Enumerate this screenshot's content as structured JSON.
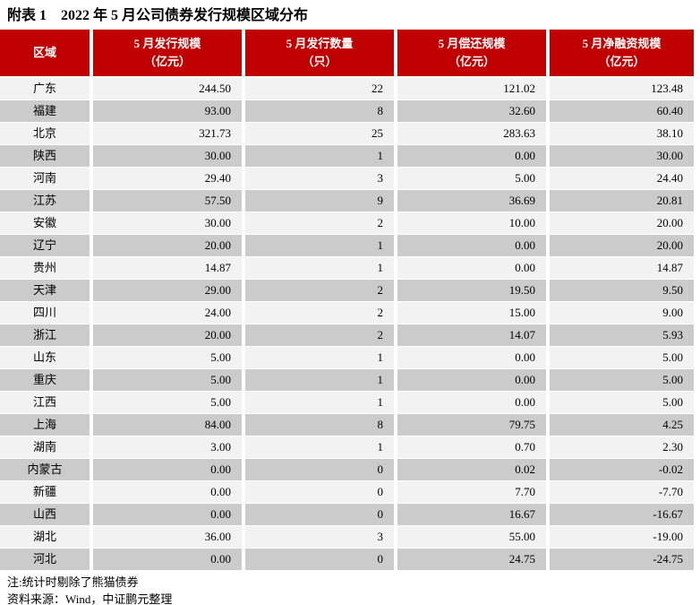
{
  "title": "附表 1　2022 年 5 月公司债券发行规模区域分布",
  "colors": {
    "header_bg": "#C00000",
    "header_text": "#FFFFFF",
    "row_light": "#F2F2F2",
    "row_dark": "#CBCBCB"
  },
  "table": {
    "columns": [
      {
        "line1": "区域",
        "line2": ""
      },
      {
        "line1": "5 月发行规模",
        "line2": "（亿元）"
      },
      {
        "line1": "5 月发行数量",
        "line2": "（只）"
      },
      {
        "line1": "5 月偿还规模",
        "line2": "（亿元）"
      },
      {
        "line1": "5 月净融资规模",
        "line2": "（亿元）"
      }
    ],
    "rows": [
      [
        "广东",
        "244.50",
        "22",
        "121.02",
        "123.48"
      ],
      [
        "福建",
        "93.00",
        "8",
        "32.60",
        "60.40"
      ],
      [
        "北京",
        "321.73",
        "25",
        "283.63",
        "38.10"
      ],
      [
        "陕西",
        "30.00",
        "1",
        "0.00",
        "30.00"
      ],
      [
        "河南",
        "29.40",
        "3",
        "5.00",
        "24.40"
      ],
      [
        "江苏",
        "57.50",
        "9",
        "36.69",
        "20.81"
      ],
      [
        "安徽",
        "30.00",
        "2",
        "10.00",
        "20.00"
      ],
      [
        "辽宁",
        "20.00",
        "1",
        "0.00",
        "20.00"
      ],
      [
        "贵州",
        "14.87",
        "1",
        "0.00",
        "14.87"
      ],
      [
        "天津",
        "29.00",
        "2",
        "19.50",
        "9.50"
      ],
      [
        "四川",
        "24.00",
        "2",
        "15.00",
        "9.00"
      ],
      [
        "浙江",
        "20.00",
        "2",
        "14.07",
        "5.93"
      ],
      [
        "山东",
        "5.00",
        "1",
        "0.00",
        "5.00"
      ],
      [
        "重庆",
        "5.00",
        "1",
        "0.00",
        "5.00"
      ],
      [
        "江西",
        "5.00",
        "1",
        "0.00",
        "5.00"
      ],
      [
        "上海",
        "84.00",
        "8",
        "79.75",
        "4.25"
      ],
      [
        "湖南",
        "3.00",
        "1",
        "0.70",
        "2.30"
      ],
      [
        "内蒙古",
        "0.00",
        "0",
        "0.02",
        "-0.02"
      ],
      [
        "新疆",
        "0.00",
        "0",
        "7.70",
        "-7.70"
      ],
      [
        "山西",
        "0.00",
        "0",
        "16.67",
        "-16.67"
      ],
      [
        "湖北",
        "36.00",
        "3",
        "55.00",
        "-19.00"
      ],
      [
        "河北",
        "0.00",
        "0",
        "24.75",
        "-24.75"
      ]
    ]
  },
  "notes": {
    "note1": "注:统计时剔除了熊猫债券",
    "note2": "资料来源：Wind，中证鹏元整理"
  },
  "chart_data": {
    "type": "table",
    "title": "附表 1　2022 年 5 月公司债券发行规模区域分布",
    "columns": [
      "区域",
      "5 月发行规模（亿元）",
      "5 月发行数量（只）",
      "5 月偿还规模（亿元）",
      "5 月净融资规模（亿元）"
    ],
    "rows": [
      [
        "广东",
        244.5,
        22,
        121.02,
        123.48
      ],
      [
        "福建",
        93.0,
        8,
        32.6,
        60.4
      ],
      [
        "北京",
        321.73,
        25,
        283.63,
        38.1
      ],
      [
        "陕西",
        30.0,
        1,
        0.0,
        30.0
      ],
      [
        "河南",
        29.4,
        3,
        5.0,
        24.4
      ],
      [
        "江苏",
        57.5,
        9,
        36.69,
        20.81
      ],
      [
        "安徽",
        30.0,
        2,
        10.0,
        20.0
      ],
      [
        "辽宁",
        20.0,
        1,
        0.0,
        20.0
      ],
      [
        "贵州",
        14.87,
        1,
        0.0,
        14.87
      ],
      [
        "天津",
        29.0,
        2,
        19.5,
        9.5
      ],
      [
        "四川",
        24.0,
        2,
        15.0,
        9.0
      ],
      [
        "浙江",
        20.0,
        2,
        14.07,
        5.93
      ],
      [
        "山东",
        5.0,
        1,
        0.0,
        5.0
      ],
      [
        "重庆",
        5.0,
        1,
        0.0,
        5.0
      ],
      [
        "江西",
        5.0,
        1,
        0.0,
        5.0
      ],
      [
        "上海",
        84.0,
        8,
        79.75,
        4.25
      ],
      [
        "湖南",
        3.0,
        1,
        0.7,
        2.3
      ],
      [
        "内蒙古",
        0.0,
        0,
        0.02,
        -0.02
      ],
      [
        "新疆",
        0.0,
        0,
        7.7,
        -7.7
      ],
      [
        "山西",
        0.0,
        0,
        16.67,
        -16.67
      ],
      [
        "湖北",
        36.0,
        3,
        55.0,
        -19.0
      ],
      [
        "河北",
        0.0,
        0,
        24.75,
        -24.75
      ]
    ]
  }
}
